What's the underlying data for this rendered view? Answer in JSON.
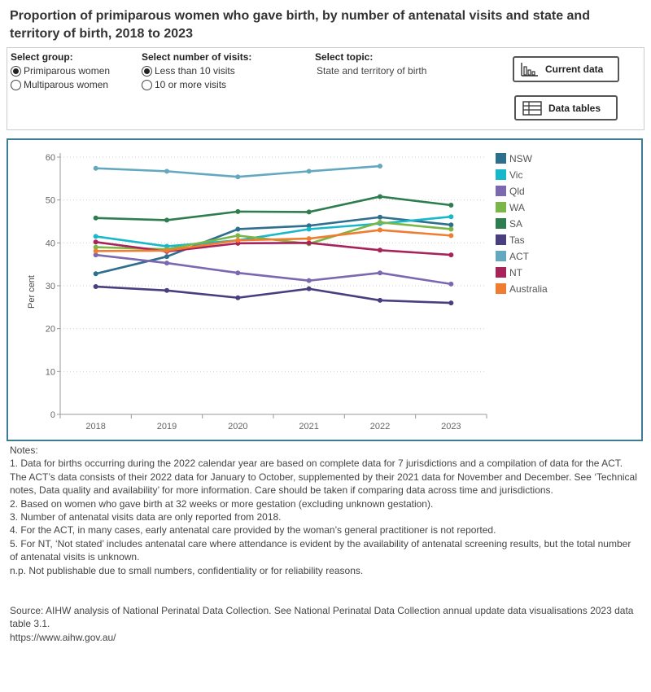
{
  "title": "Proportion of primiparous women who gave birth, by number of antenatal visits and state and territory of birth, 2018 to 2023",
  "controls": {
    "group": {
      "label": "Select group:",
      "options": [
        "Primiparous women",
        "Multiparous women"
      ],
      "selected": "Primiparous women"
    },
    "visits": {
      "label": "Select number of visits:",
      "options": [
        "Less than 10 visits",
        "10 or more visits"
      ],
      "selected": "Less than 10 visits"
    },
    "topic": {
      "label": "Select topic:",
      "value": "State and territory of birth"
    },
    "buttons": {
      "current_data": "Current data",
      "data_tables": "Data tables"
    }
  },
  "chart_data": {
    "type": "line",
    "x": [
      "2018",
      "2019",
      "2020",
      "2021",
      "2022",
      "2023"
    ],
    "ylabel": "Per cent",
    "xlabel": "",
    "ylim": [
      0,
      60
    ],
    "yticks": [
      0,
      10,
      20,
      30,
      40,
      50,
      60
    ],
    "grid": "horizontal dotted",
    "legend_position": "right",
    "series": [
      {
        "name": "NSW",
        "color": "#2e6f8e",
        "values": [
          32.8,
          36.8,
          43.2,
          44.0,
          46.0,
          44.2
        ]
      },
      {
        "name": "Vic",
        "color": "#17b8c9",
        "values": [
          41.5,
          39.2,
          40.6,
          43.2,
          44.5,
          46.1
        ]
      },
      {
        "name": "Qld",
        "color": "#7b68b0",
        "values": [
          37.2,
          35.3,
          33.0,
          31.2,
          33.0,
          30.4
        ]
      },
      {
        "name": "WA",
        "color": "#7ab648",
        "values": [
          39.0,
          38.5,
          41.7,
          39.8,
          44.8,
          43.2
        ]
      },
      {
        "name": "SA",
        "color": "#2e7d4f",
        "values": [
          45.8,
          45.3,
          47.3,
          47.2,
          50.8,
          48.8
        ]
      },
      {
        "name": "Tas",
        "color": "#4a3f7e",
        "values": [
          29.8,
          28.9,
          27.2,
          29.3,
          26.6,
          26.0
        ]
      },
      {
        "name": "ACT",
        "color": "#64a8c0",
        "values": [
          57.4,
          56.7,
          55.4,
          56.7,
          57.9,
          null
        ]
      },
      {
        "name": "NT",
        "color": "#a8235a",
        "values": [
          40.2,
          38.0,
          39.9,
          40.0,
          38.3,
          37.2
        ]
      },
      {
        "name": "Australia",
        "color": "#f07d2f",
        "values": [
          38.1,
          38.2,
          40.6,
          41.0,
          43.0,
          41.7
        ]
      }
    ]
  },
  "notes": {
    "heading": "Notes:",
    "items": [
      "1. Data for births occurring during the 2022 calendar year are based on complete data for 7 jurisdictions and a compilation of data for the ACT. The ACT’s data consists of their 2022 data for January to October, supplemented by their 2021 data for November and December. See ‘Technical notes, Data quality and availability’ for more information. Care should be taken if comparing data across time and jurisdictions.",
      "2. Based on women who gave birth at 32 weeks or more gestation (excluding unknown gestation).",
      "3. Number of antenatal visits data are only reported from 2018.",
      "4. For the ACT, in many cases, early antenatal care provided by the woman’s general practitioner is not reported.",
      "5. For NT, ‘Not stated’ includes antenatal care where attendance is evident by the availability of antenatal screening results, but the total number of antenatal visits is unknown.",
      "n.p. Not publishable due to small numbers, confidentiality or for reliability reasons."
    ]
  },
  "source": {
    "text": "Source: AIHW analysis of National Perinatal Data Collection. See National Perinatal Data Collection annual update data visualisations 2023 data table 3.1.",
    "url": "https://www.aihw.gov.au/"
  },
  "icons": {
    "radio_selected": "radio-selected-icon",
    "radio_unselected": "radio-unselected-icon",
    "chart": "bar-chart-icon",
    "table": "table-icon"
  }
}
